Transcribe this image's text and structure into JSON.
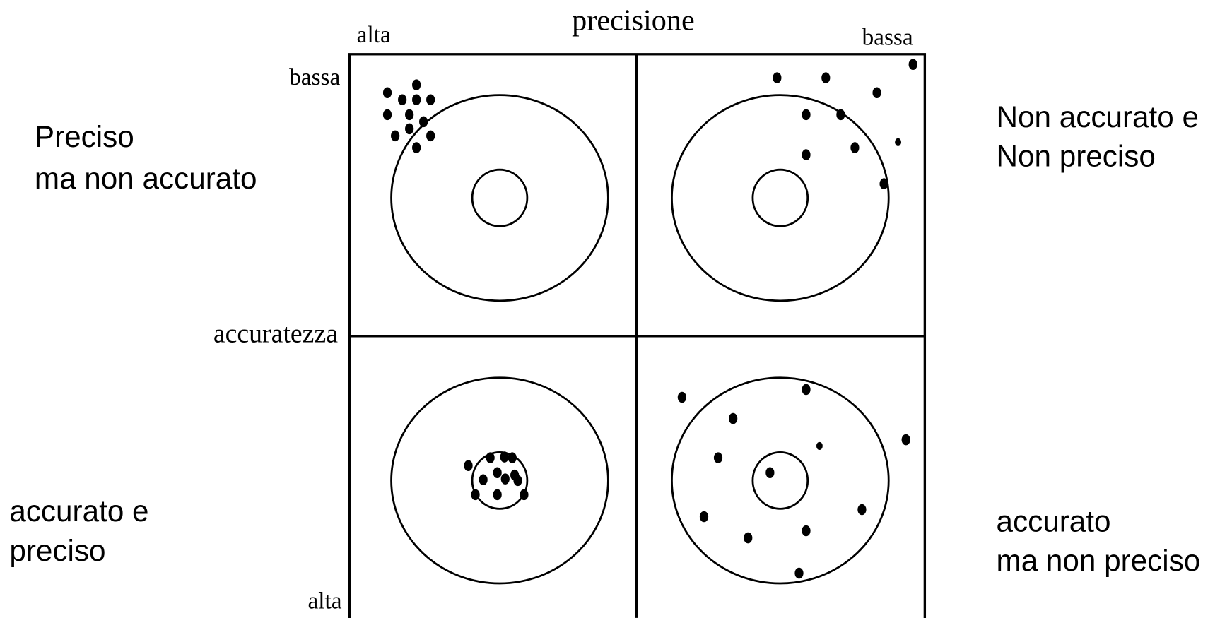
{
  "precision_axis": {
    "title": "precisione",
    "left": "alta",
    "right": "bassa"
  },
  "accuracy_axis": {
    "title": "accuratezza",
    "top": "bassa",
    "bottom": "alta"
  },
  "quadrants": [
    {
      "lines": [
        "Preciso",
        "ma non accurato"
      ]
    },
    {
      "lines": [
        "Non accurato e",
        "Non preciso"
      ]
    },
    {
      "lines": [
        "accurato e",
        "preciso"
      ]
    },
    {
      "lines": [
        "accurato",
        "ma non preciso"
      ]
    }
  ]
}
